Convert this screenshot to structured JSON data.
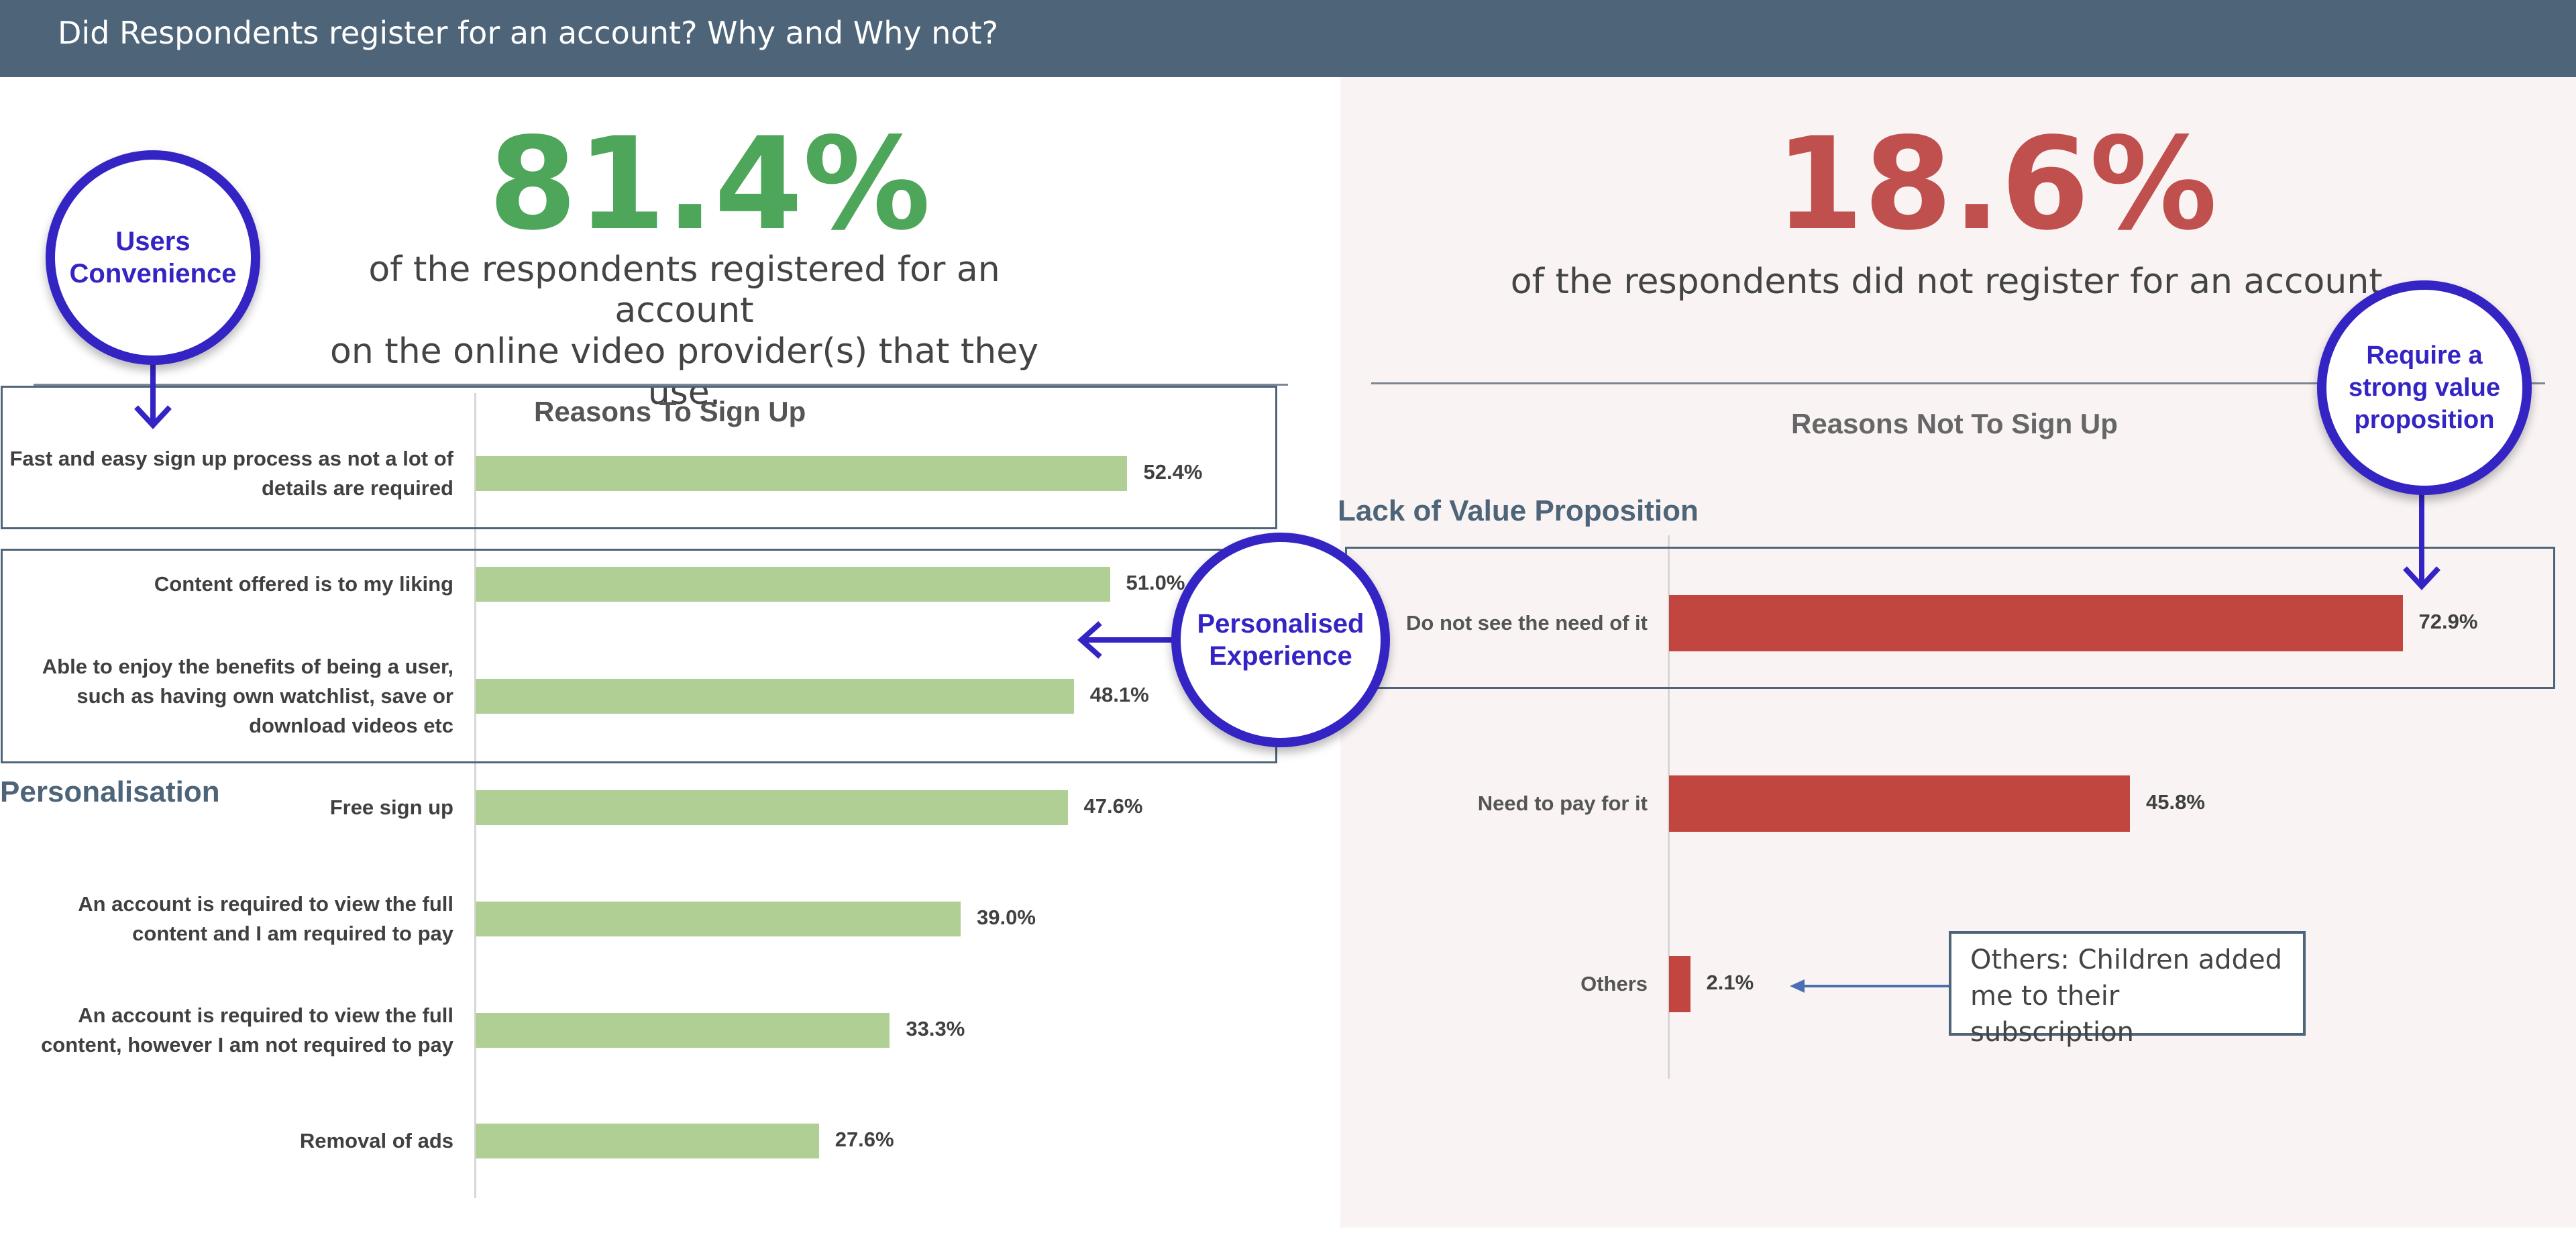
{
  "header": {
    "title": "Did Respondents register for an account? Why and Why not?"
  },
  "left_summary": {
    "percent": "81.4%",
    "percent_color": "#4ea65a",
    "line1": "of the respondents registered for an account",
    "line2": "on the online video provider(s) that they use."
  },
  "right_summary": {
    "percent": "18.6%",
    "percent_color": "#c0504d",
    "line1": "of the respondents did not register for an account."
  },
  "callouts": {
    "users_convenience": [
      "Users",
      "Convenience"
    ],
    "personalised_experience": [
      "Personalised",
      "Experience"
    ],
    "value_proposition": [
      "Require a",
      "strong value",
      "proposition"
    ]
  },
  "group_labels": {
    "personalisation": "Personalisation",
    "lack_of_value": "Lack of Value Proposition"
  },
  "note": {
    "line1": "Others: Children added",
    "line2": "me to their subscription"
  },
  "colors": {
    "sign_up_bar": "#b0cf94",
    "not_sign_up_bar": "#c0463f",
    "accent": "#3424c4",
    "header": "#4e6478"
  },
  "chart_data": [
    {
      "type": "bar",
      "orientation": "horizontal",
      "title": "Reasons To Sign Up",
      "categories": [
        [
          "Fast and easy sign up process as not a lot of",
          "details are required"
        ],
        [
          "Content offered is to my liking"
        ],
        [
          "Able to enjoy the benefits of being a user,",
          "such as having own watchlist, save or",
          "download videos etc"
        ],
        [
          "Free sign up"
        ],
        [
          "An account is required to view the full",
          "content and I am required to pay"
        ],
        [
          "An account is required to view  the full",
          "content, however I am not required to pay"
        ],
        [
          "Removal of ads"
        ]
      ],
      "values": [
        52.4,
        51.0,
        48.1,
        47.6,
        39.0,
        33.3,
        27.6
      ],
      "value_labels": [
        "52.4%",
        "51.0%",
        "48.1%",
        "47.6%",
        "39.0%",
        "33.3%",
        "27.6%"
      ],
      "xlim": [
        0,
        100
      ],
      "grid": false,
      "color": "#b0cf94"
    },
    {
      "type": "bar",
      "orientation": "horizontal",
      "title": "Reasons Not To Sign Up",
      "categories": [
        [
          "Do not see the need of it"
        ],
        [
          "Need to pay for it"
        ],
        [
          "Others"
        ]
      ],
      "values": [
        72.9,
        45.8,
        2.1
      ],
      "value_labels": [
        "72.9%",
        "45.8%",
        "2.1%"
      ],
      "xlim": [
        0,
        100
      ],
      "grid": false,
      "color": "#c0463f"
    }
  ]
}
